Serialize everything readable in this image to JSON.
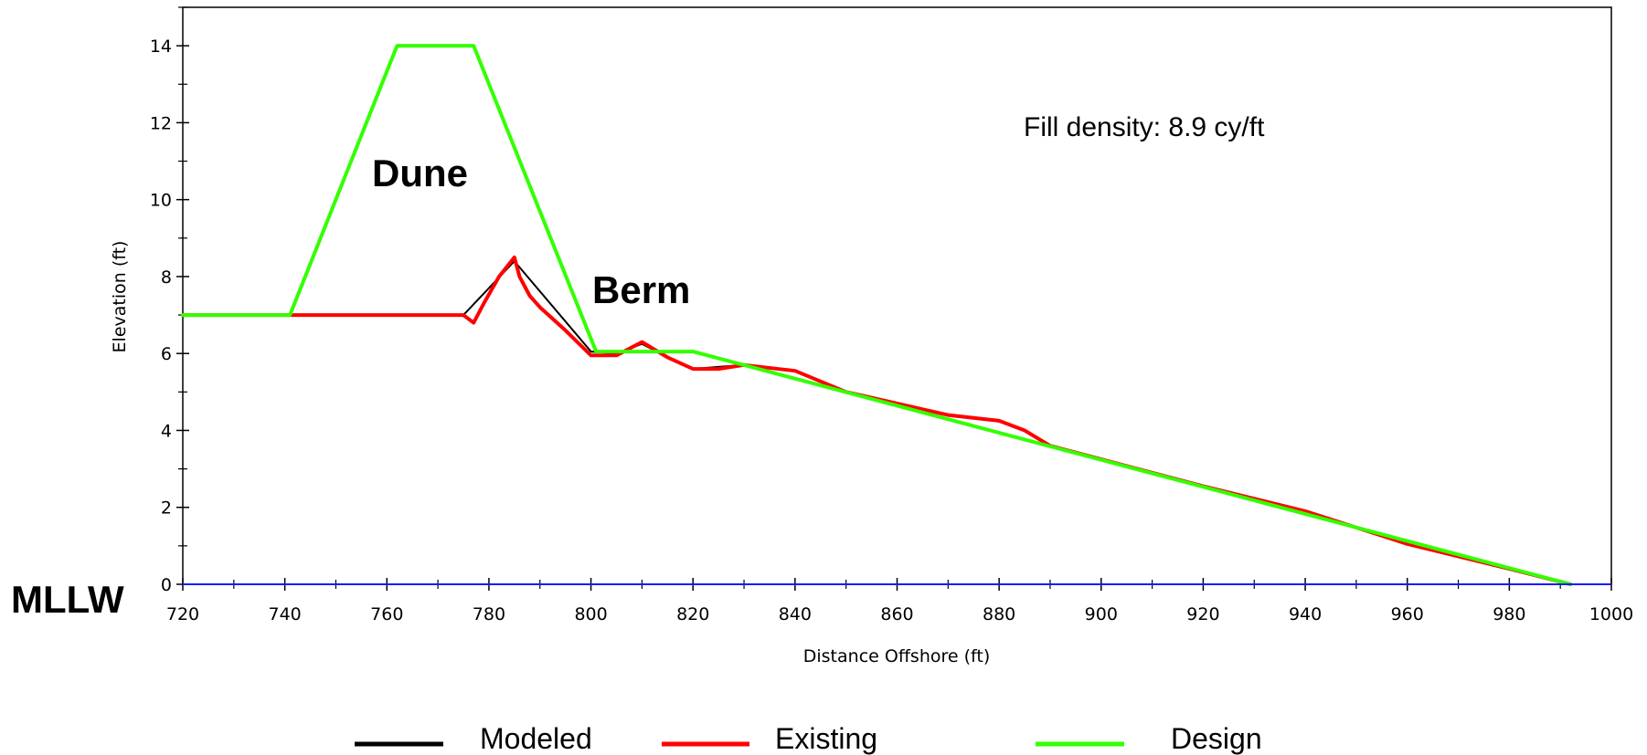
{
  "chart_data": {
    "type": "line",
    "xlabel": "Distance Offshore (ft)",
    "ylabel": "Elevation (ft)",
    "xlim": [
      720,
      1000
    ],
    "ylim": [
      0,
      15
    ],
    "x_ticks": [
      720,
      740,
      760,
      780,
      800,
      820,
      840,
      860,
      880,
      900,
      920,
      940,
      960,
      980,
      1000
    ],
    "y_ticks": [
      0,
      2,
      4,
      6,
      8,
      10,
      12,
      14
    ],
    "grid": false,
    "legend_position": "bottom",
    "annotations": {
      "fill_density": "Fill density:  8.9 cy/ft",
      "dune": "Dune",
      "berm": "Berm",
      "datum": "MLLW"
    },
    "series": [
      {
        "name": "Modeled",
        "color": "#000000",
        "x": [
          720,
          740,
          775,
          785,
          800,
          805,
          810,
          815,
          820,
          830,
          840,
          850,
          860,
          870,
          880,
          885,
          890,
          900,
          920,
          940,
          960,
          980,
          992
        ],
        "y": [
          7,
          7,
          7,
          8.4,
          6.05,
          6.0,
          6.25,
          5.9,
          5.6,
          5.7,
          5.55,
          5.0,
          4.7,
          4.4,
          4.25,
          4.0,
          3.6,
          3.25,
          2.55,
          1.9,
          1.05,
          0.4,
          0
        ]
      },
      {
        "name": "Existing",
        "color": "#ff0000",
        "x": [
          720,
          740,
          775,
          777,
          779,
          782,
          785,
          786,
          788,
          790,
          795,
          800,
          805,
          810,
          815,
          820,
          825,
          830,
          840,
          850,
          860,
          870,
          880,
          885,
          890,
          900,
          920,
          940,
          960,
          980,
          992
        ],
        "y": [
          7,
          7,
          7,
          6.8,
          7.3,
          8.0,
          8.5,
          8.0,
          7.5,
          7.2,
          6.6,
          5.95,
          5.95,
          6.3,
          5.9,
          5.6,
          5.6,
          5.7,
          5.55,
          5.0,
          4.7,
          4.4,
          4.25,
          4.0,
          3.6,
          3.25,
          2.55,
          1.9,
          1.05,
          0.4,
          0
        ]
      },
      {
        "name": "Design",
        "color": "#33ff00",
        "x": [
          720,
          741,
          762,
          777,
          801,
          820,
          992
        ],
        "y": [
          7,
          7,
          14,
          14,
          6.05,
          6.05,
          0
        ]
      }
    ]
  }
}
